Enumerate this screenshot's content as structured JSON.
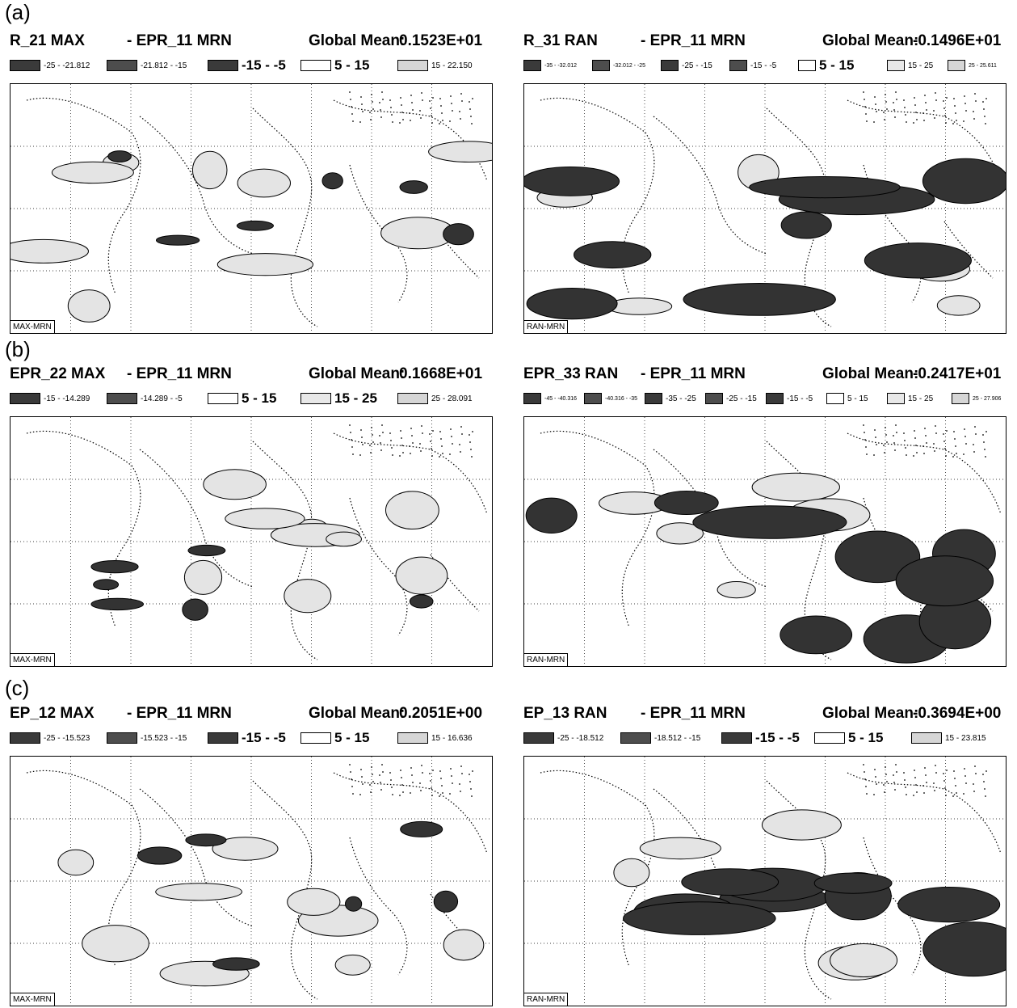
{
  "rows": [
    {
      "label": "(a)"
    },
    {
      "label": "(b)"
    },
    {
      "label": "(c)"
    }
  ],
  "panels": [
    {
      "title_left": "R_21 MAX",
      "title_mid": "- EPR_11 MRN",
      "global_mean_label": "Global Mean:",
      "global_mean": "0.1523E+01",
      "box_label": "MAX-MRN",
      "legend": [
        {
          "style": "dark",
          "text": "-25 - -21.812",
          "size": "small"
        },
        {
          "style": "dark2",
          "text": "-21.812 - -15",
          "size": "small"
        },
        {
          "style": "dark",
          "text": "-15 - -5",
          "size": "big"
        },
        {
          "style": "light",
          "text": "5 - 15",
          "size": "big"
        },
        {
          "style": "light3",
          "text": "15 - 22.150",
          "size": "small"
        }
      ]
    },
    {
      "title_left": "R_31 RAN",
      "title_mid": "- EPR_11 MRN",
      "global_mean_label": "Global Mean:",
      "global_mean": "-0.1496E+01",
      "box_label": "RAN-MRN",
      "legend": [
        {
          "style": "dark",
          "text": "-35 - -32.012",
          "size": "tiny"
        },
        {
          "style": "dark2",
          "text": "-32.012 - -25",
          "size": "tiny"
        },
        {
          "style": "dark",
          "text": "-25 - -15",
          "size": "small"
        },
        {
          "style": "dark2",
          "text": "-15 - -5",
          "size": "small"
        },
        {
          "style": "light",
          "text": "5 - 15",
          "size": "big"
        },
        {
          "style": "light2",
          "text": "15 - 25",
          "size": "small"
        },
        {
          "style": "light3",
          "text": "25 - 25.611",
          "size": "tiny"
        }
      ]
    },
    {
      "title_left": "EPR_22 MAX",
      "title_mid": "- EPR_11 MRN",
      "global_mean_label": "Global Mean:",
      "global_mean": "0.1668E+01",
      "box_label": "MAX-MRN",
      "legend": [
        {
          "style": "dark",
          "text": "-15 - -14.289",
          "size": "small"
        },
        {
          "style": "dark2",
          "text": "-14.289 - -5",
          "size": "small"
        },
        {
          "style": "light",
          "text": "5 - 15",
          "size": "big"
        },
        {
          "style": "light2",
          "text": "15 - 25",
          "size": "big"
        },
        {
          "style": "light3",
          "text": "25 - 28.091",
          "size": "small"
        }
      ]
    },
    {
      "title_left": "EPR_33 RAN",
      "title_mid": "- EPR_11 MRN",
      "global_mean_label": "Global Mean:",
      "global_mean": "-0.2417E+01",
      "box_label": "RAN-MRN",
      "legend": [
        {
          "style": "dark",
          "text": "-45 - -40.316",
          "size": "tiny"
        },
        {
          "style": "dark2",
          "text": "-40.316 - -35",
          "size": "tiny"
        },
        {
          "style": "dark",
          "text": "-35 - -25",
          "size": "small"
        },
        {
          "style": "dark2",
          "text": "-25 - -15",
          "size": "small"
        },
        {
          "style": "dark",
          "text": "-15 - -5",
          "size": "small"
        },
        {
          "style": "light",
          "text": "5 - 15",
          "size": "small"
        },
        {
          "style": "light2",
          "text": "15 - 25",
          "size": "small"
        },
        {
          "style": "light3",
          "text": "25 - 27.906",
          "size": "tiny"
        }
      ]
    },
    {
      "title_left": "EP_12 MAX",
      "title_mid": "- EPR_11 MRN",
      "global_mean_label": "Global Mean:",
      "global_mean": "0.2051E+00",
      "box_label": "MAX-MRN",
      "legend": [
        {
          "style": "dark",
          "text": "-25 - -15.523",
          "size": "small"
        },
        {
          "style": "dark2",
          "text": "-15.523 - -15",
          "size": "small"
        },
        {
          "style": "dark",
          "text": "-15 - -5",
          "size": "big"
        },
        {
          "style": "light",
          "text": "5 - 15",
          "size": "big"
        },
        {
          "style": "light3",
          "text": "15 - 16.636",
          "size": "small"
        }
      ]
    },
    {
      "title_left": "EP_13 RAN",
      "title_mid": "- EPR_11 MRN",
      "global_mean_label": "Global Mean:",
      "global_mean": "-0.3694E+00",
      "box_label": "RAN-MRN",
      "legend": [
        {
          "style": "dark",
          "text": "-25 - -18.512",
          "size": "small"
        },
        {
          "style": "dark2",
          "text": "-18.512 - -15",
          "size": "small"
        },
        {
          "style": "dark",
          "text": "-15 - -5",
          "size": "big"
        },
        {
          "style": "light",
          "text": "5 - 15",
          "size": "big"
        },
        {
          "style": "light3",
          "text": "15 - 23.815",
          "size": "small"
        }
      ]
    }
  ]
}
